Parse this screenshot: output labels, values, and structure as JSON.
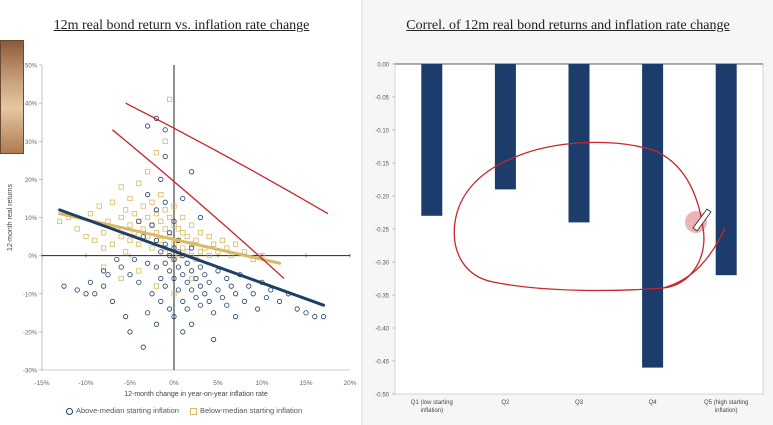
{
  "left_chart": {
    "title": "12m real bond return vs. inflation rate change"
  },
  "right_chart": {
    "title": "Correl. of 12m real bond returns and inflation rate change"
  },
  "colors": {
    "above_median": "#1f3f66",
    "below_median": "#d8b964",
    "bar": "#1c3d6b",
    "annotation": "#c8262b"
  },
  "chart_data": [
    {
      "type": "scatter",
      "title": "12m real bond return vs. inflation rate change",
      "xlabel": "12-month change in year-on-year inflation rate",
      "ylabel": "12-month real returns",
      "xlim": [
        -15,
        20
      ],
      "ylim": [
        -30,
        50
      ],
      "x_ticks": [
        "-15%",
        "-10%",
        "-5%",
        "0%",
        "5%",
        "10%",
        "15%",
        "20%"
      ],
      "y_ticks": [
        "50%",
        "40%",
        "30%",
        "20%",
        "10%",
        "0%",
        "-10%",
        "-20%",
        "-30%"
      ],
      "legend_position": "bottom",
      "series": [
        {
          "name": "Above-median starting inflation",
          "marker": "circle",
          "trend_line": {
            "x": [
              -13,
              17
            ],
            "y": [
              12,
              -13
            ]
          },
          "points": [
            [
              -12.5,
              -8
            ],
            [
              -11,
              -9
            ],
            [
              -10,
              -10
            ],
            [
              -9.5,
              -7
            ],
            [
              -9,
              -10
            ],
            [
              -8,
              -4
            ],
            [
              -8,
              -8
            ],
            [
              -7.5,
              -5
            ],
            [
              -7,
              -12
            ],
            [
              -6.5,
              -1
            ],
            [
              -6,
              -3
            ],
            [
              -5.5,
              -16
            ],
            [
              -5,
              -20
            ],
            [
              -5,
              -5
            ],
            [
              -4.5,
              -1
            ],
            [
              -4,
              -7
            ],
            [
              -4,
              9
            ],
            [
              -3.5,
              -24
            ],
            [
              -3.5,
              5
            ],
            [
              -3,
              -2
            ],
            [
              -3,
              -15
            ],
            [
              -3,
              16
            ],
            [
              -2.5,
              -10
            ],
            [
              -2.5,
              8
            ],
            [
              -2,
              -3
            ],
            [
              -2,
              4
            ],
            [
              -2,
              -18
            ],
            [
              -2,
              12
            ],
            [
              -1.5,
              -6
            ],
            [
              -1.5,
              1
            ],
            [
              -1.5,
              -12
            ],
            [
              -1.5,
              20
            ],
            [
              -1,
              -2
            ],
            [
              -1,
              3
            ],
            [
              -1,
              -8
            ],
            [
              -1,
              14
            ],
            [
              -0.5,
              0
            ],
            [
              -0.5,
              -4
            ],
            [
              -0.5,
              6
            ],
            [
              -0.5,
              -14
            ],
            [
              0,
              -1
            ],
            [
              0,
              2
            ],
            [
              0,
              -6
            ],
            [
              0,
              9
            ],
            [
              0,
              -16
            ],
            [
              0.5,
              -3
            ],
            [
              0.5,
              1
            ],
            [
              0.5,
              -9
            ],
            [
              0.5,
              4
            ],
            [
              1,
              -5
            ],
            [
              1,
              0
            ],
            [
              1,
              -12
            ],
            [
              1,
              -20
            ],
            [
              1.5,
              -7
            ],
            [
              1.5,
              -2
            ],
            [
              1.5,
              -14
            ],
            [
              2,
              -4
            ],
            [
              2,
              -9
            ],
            [
              2,
              2
            ],
            [
              2,
              -18
            ],
            [
              2.5,
              -6
            ],
            [
              2.5,
              -11
            ],
            [
              3,
              -8
            ],
            [
              3,
              -3
            ],
            [
              3,
              -13
            ],
            [
              3.5,
              -10
            ],
            [
              3.5,
              -5
            ],
            [
              4,
              -7
            ],
            [
              4,
              -12
            ],
            [
              4.5,
              -15
            ],
            [
              4.5,
              -22
            ],
            [
              5,
              -9
            ],
            [
              5,
              -4
            ],
            [
              5.5,
              -11
            ],
            [
              6,
              -6
            ],
            [
              6,
              -13
            ],
            [
              6.5,
              -8
            ],
            [
              7,
              -10
            ],
            [
              7,
              -16
            ],
            [
              7.5,
              -5
            ],
            [
              8,
              -12
            ],
            [
              8.5,
              -8
            ],
            [
              9,
              -10
            ],
            [
              9.5,
              -14
            ],
            [
              10,
              -7
            ],
            [
              10.5,
              -11
            ],
            [
              11,
              -9
            ],
            [
              12,
              -12
            ],
            [
              13,
              -10
            ],
            [
              14,
              -14
            ],
            [
              15,
              -15
            ],
            [
              16,
              -16
            ],
            [
              17,
              -16
            ],
            [
              -2,
              36
            ],
            [
              -1,
              33
            ],
            [
              -3,
              34
            ],
            [
              2,
              22
            ],
            [
              -1,
              26
            ],
            [
              3,
              10
            ],
            [
              1,
              15
            ]
          ]
        },
        {
          "name": "Below-median starting inflation",
          "marker": "square",
          "trend_line": {
            "x": [
              -13,
              12
            ],
            "y": [
              11,
              -2
            ]
          },
          "points": [
            [
              -13,
              9
            ],
            [
              -12,
              10
            ],
            [
              -11,
              7
            ],
            [
              -10,
              5
            ],
            [
              -9.5,
              11
            ],
            [
              -9,
              4
            ],
            [
              -8.5,
              13
            ],
            [
              -8,
              6
            ],
            [
              -8,
              2
            ],
            [
              -7.5,
              9
            ],
            [
              -7,
              14
            ],
            [
              -7,
              3
            ],
            [
              -6.5,
              7
            ],
            [
              -6,
              10
            ],
            [
              -6,
              5
            ],
            [
              -6,
              18
            ],
            [
              -5.5,
              12
            ],
            [
              -5.5,
              1
            ],
            [
              -5,
              8
            ],
            [
              -5,
              15
            ],
            [
              -5,
              4
            ],
            [
              -4.5,
              11
            ],
            [
              -4.5,
              6
            ],
            [
              -4,
              9
            ],
            [
              -4,
              19
            ],
            [
              -4,
              3
            ],
            [
              -3.5,
              13
            ],
            [
              -3.5,
              7
            ],
            [
              -3,
              10
            ],
            [
              -3,
              5
            ],
            [
              -3,
              22
            ],
            [
              -2.5,
              8
            ],
            [
              -2.5,
              14
            ],
            [
              -2.5,
              2
            ],
            [
              -2,
              11
            ],
            [
              -2,
              6
            ],
            [
              -2,
              27
            ],
            [
              -1.5,
              9
            ],
            [
              -1.5,
              4
            ],
            [
              -1.5,
              16
            ],
            [
              -1,
              7
            ],
            [
              -1,
              12
            ],
            [
              -1,
              2
            ],
            [
              -1,
              30
            ],
            [
              -0.5,
              5
            ],
            [
              -0.5,
              10
            ],
            [
              -0.5,
              1
            ],
            [
              -0.5,
              41
            ],
            [
              0,
              3
            ],
            [
              0,
              8
            ],
            [
              0,
              13
            ],
            [
              0,
              -1
            ],
            [
              0.5,
              4
            ],
            [
              0.5,
              7
            ],
            [
              0.5,
              0
            ],
            [
              1,
              2
            ],
            [
              1,
              6
            ],
            [
              1,
              10
            ],
            [
              1.5,
              1
            ],
            [
              1.5,
              5
            ],
            [
              2,
              0
            ],
            [
              2,
              3
            ],
            [
              2,
              8
            ],
            [
              2.5,
              -1
            ],
            [
              2.5,
              4
            ],
            [
              3,
              1
            ],
            [
              3,
              6
            ],
            [
              3.5,
              2
            ],
            [
              4,
              0
            ],
            [
              4,
              5
            ],
            [
              4.5,
              3
            ],
            [
              5,
              1
            ],
            [
              5.5,
              4
            ],
            [
              6,
              2
            ],
            [
              6.5,
              0
            ],
            [
              7,
              3
            ],
            [
              8,
              1
            ],
            [
              9,
              -1
            ],
            [
              10,
              0
            ],
            [
              -8,
              -3
            ],
            [
              -6,
              -6
            ],
            [
              -4,
              -4
            ],
            [
              -2,
              -8
            ],
            [
              0,
              -10
            ],
            [
              2,
              -6
            ]
          ]
        }
      ],
      "annotations": [
        {
          "type": "hand-drawn line",
          "color": "red",
          "x": [
            -5.5,
            17.5
          ],
          "y": [
            40,
            11
          ]
        },
        {
          "type": "hand-drawn line",
          "color": "red",
          "x": [
            -7,
            12.5
          ],
          "y": [
            33,
            -6
          ]
        }
      ]
    },
    {
      "type": "bar",
      "title": "Correl. of 12m real bond returns and inflation rate change",
      "categories": [
        "Q1 (low starting inflation)",
        "Q2",
        "Q3",
        "Q4",
        "Q5 (high starting inflation)"
      ],
      "values": [
        -0.23,
        -0.19,
        -0.24,
        -0.46,
        -0.32
      ],
      "ylim": [
        -0.5,
        0
      ],
      "y_ticks": [
        "0.00",
        "-0.05",
        "-0.10",
        "-0.15",
        "-0.20",
        "-0.25",
        "-0.30",
        "-0.35",
        "-0.40",
        "-0.45",
        "-0.50"
      ],
      "annotations": [
        {
          "type": "hand-drawn ellipse",
          "color": "red",
          "around": [
            "Q2",
            "Q3",
            "Q4",
            "Q5"
          ]
        },
        {
          "type": "pen cursor",
          "near": "Q5"
        }
      ]
    }
  ]
}
